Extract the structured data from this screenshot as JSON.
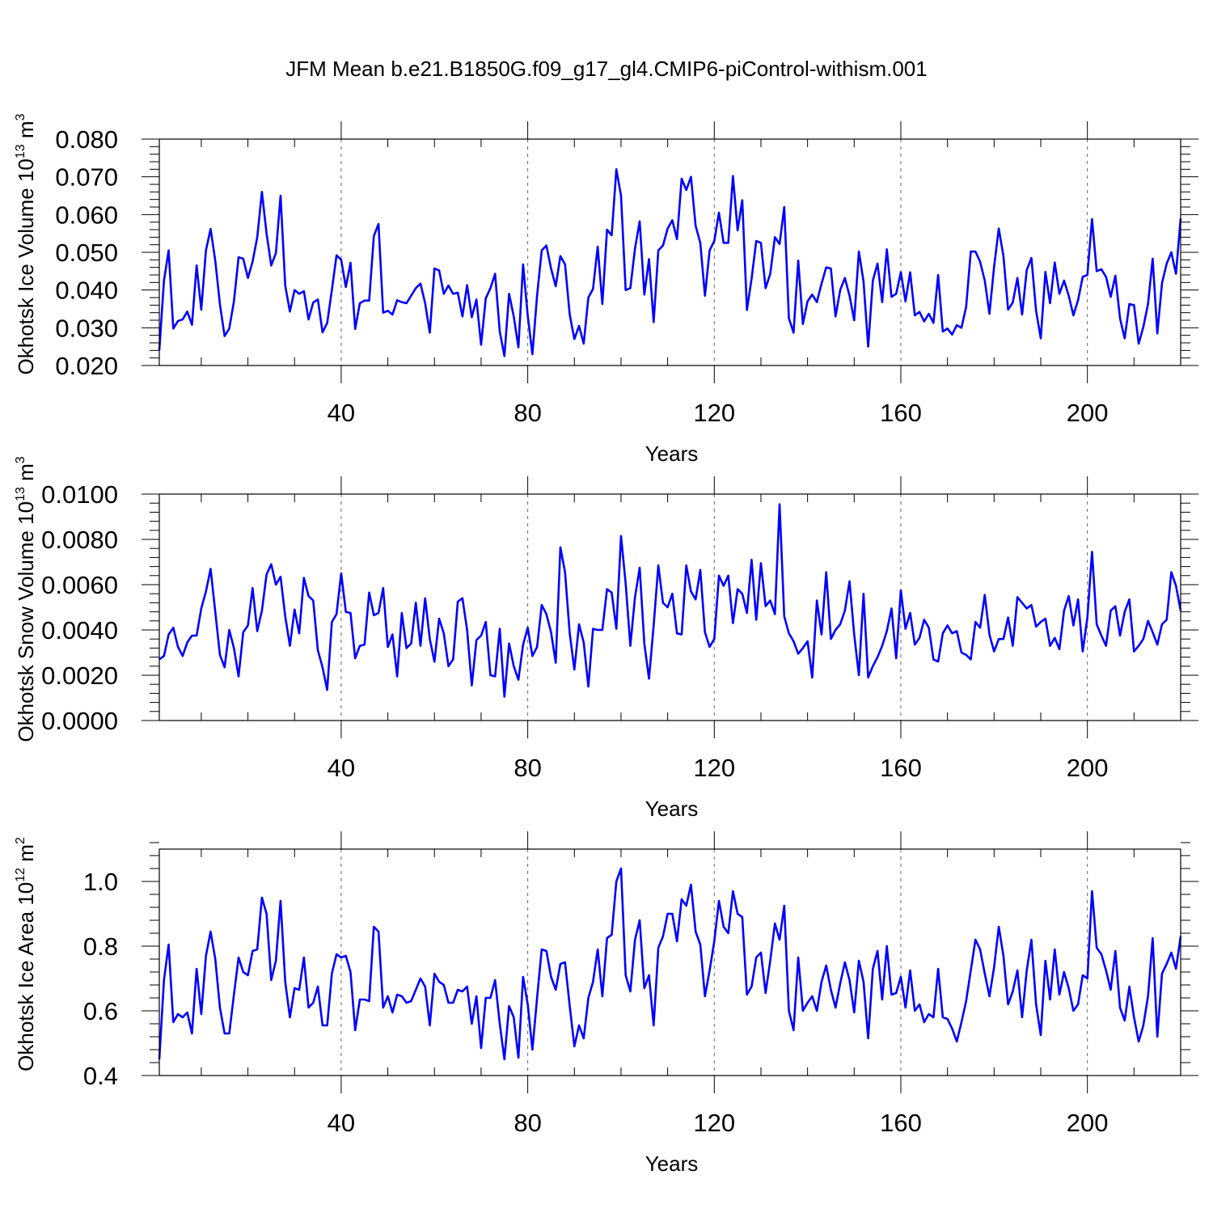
{
  "figure_title": "JFM Mean b.e21.B1850G.f09_g17_gl4.CMIP6-piControl-withism.001",
  "colors": {
    "line": "#0000ff",
    "axis": "#000000",
    "grid": "#666666"
  },
  "chart_data": [
    {
      "type": "line",
      "title": "",
      "xlabel": "Years",
      "ylabel": {
        "text": "Okhotsk Ice Volume 10",
        "exp": "13",
        "unit": " m",
        "unit_exp": "3"
      },
      "xlim": [
        1,
        220
      ],
      "ylim": [
        0.02,
        0.08
      ],
      "x_ticks": [
        40,
        80,
        120,
        160,
        200
      ],
      "y_ticks": [
        0.02,
        0.03,
        0.04,
        0.05,
        0.06,
        0.07,
        0.08
      ],
      "y_tick_labels": [
        "0.020",
        "0.030",
        "0.040",
        "0.050",
        "0.060",
        "0.070",
        "0.080"
      ],
      "grid": "vertical dashed at x ticks",
      "series": [
        {
          "name": "Okhotsk Ice Volume",
          "x_start": 1,
          "values": [
            0.024,
            0.0425,
            0.0505,
            0.0298,
            0.0318,
            0.0322,
            0.0343,
            0.0308,
            0.0465,
            0.0348,
            0.0505,
            0.0562,
            0.0478,
            0.0362,
            0.0278,
            0.0298,
            0.037,
            0.0487,
            0.0483,
            0.0432,
            0.0475,
            0.054,
            0.066,
            0.055,
            0.0465,
            0.0498,
            0.065,
            0.0412,
            0.0343,
            0.04,
            0.039,
            0.0397,
            0.0322,
            0.0367,
            0.0375,
            0.0288,
            0.0313,
            0.04,
            0.0492,
            0.048,
            0.0408,
            0.0472,
            0.0297,
            0.0365,
            0.0372,
            0.0372,
            0.0543,
            0.0575,
            0.034,
            0.0345,
            0.0335,
            0.0373,
            0.0368,
            0.0365,
            0.0385,
            0.0405,
            0.0417,
            0.0365,
            0.0287,
            0.0457,
            0.0452,
            0.039,
            0.0412,
            0.039,
            0.0393,
            0.033,
            0.0413,
            0.0328,
            0.0375,
            0.0255,
            0.0378,
            0.0405,
            0.0443,
            0.029,
            0.0225,
            0.039,
            0.033,
            0.0248,
            0.0468,
            0.0332,
            0.023,
            0.0385,
            0.0505,
            0.0518,
            0.0457,
            0.041,
            0.049,
            0.0468,
            0.0335,
            0.027,
            0.0305,
            0.0258,
            0.038,
            0.0403,
            0.0515,
            0.0363,
            0.056,
            0.0545,
            0.072,
            0.065,
            0.04,
            0.0405,
            0.051,
            0.0582,
            0.0388,
            0.0482,
            0.0315,
            0.0505,
            0.0518,
            0.0563,
            0.0585,
            0.0535,
            0.0695,
            0.0665,
            0.07,
            0.057,
            0.0525,
            0.0385,
            0.0505,
            0.053,
            0.0605,
            0.0525,
            0.0525,
            0.0702,
            0.0558,
            0.0638,
            0.0347,
            0.043,
            0.053,
            0.0525,
            0.0405,
            0.0443,
            0.054,
            0.0522,
            0.062,
            0.0325,
            0.0287,
            0.0478,
            0.031,
            0.037,
            0.0388,
            0.0368,
            0.0417,
            0.046,
            0.0457,
            0.033,
            0.04,
            0.0432,
            0.0385,
            0.032,
            0.0502,
            0.0423,
            0.025,
            0.0425,
            0.047,
            0.0368,
            0.0508,
            0.0382,
            0.039,
            0.0447,
            0.037,
            0.0447,
            0.0333,
            0.0342,
            0.0317,
            0.0337,
            0.0313,
            0.044,
            0.029,
            0.0298,
            0.0282,
            0.0307,
            0.03,
            0.0355,
            0.0502,
            0.0502,
            0.0475,
            0.0425,
            0.0337,
            0.0462,
            0.0563,
            0.049,
            0.0348,
            0.0367,
            0.0432,
            0.0335,
            0.0453,
            0.0485,
            0.0345,
            0.0272,
            0.0448,
            0.0365,
            0.0473,
            0.039,
            0.0425,
            0.0385,
            0.0333,
            0.0373,
            0.0435,
            0.044,
            0.0588,
            0.045,
            0.0455,
            0.0435,
            0.0382,
            0.0438,
            0.0325,
            0.0272,
            0.0363,
            0.036,
            0.0258,
            0.0302,
            0.0363,
            0.0483,
            0.0285,
            0.0418,
            0.047,
            0.05,
            0.0443,
            0.059
          ]
        }
      ]
    },
    {
      "type": "line",
      "title": "",
      "xlabel": "Years",
      "ylabel": {
        "text": "Okhotsk Snow Volume 10",
        "exp": "13",
        "unit": " m",
        "unit_exp": "3"
      },
      "xlim": [
        1,
        220
      ],
      "ylim": [
        0.0,
        0.01
      ],
      "x_ticks": [
        40,
        80,
        120,
        160,
        200
      ],
      "y_ticks": [
        0.0,
        0.002,
        0.004,
        0.006,
        0.008,
        0.01
      ],
      "y_tick_labels": [
        "0.0000",
        "0.0020",
        "0.0040",
        "0.0060",
        "0.0080",
        "0.0100"
      ],
      "grid": "vertical dashed at x ticks",
      "series": [
        {
          "name": "Okhotsk Snow Volume",
          "x_start": 1,
          "values": [
            0.0027,
            0.00285,
            0.0038,
            0.0041,
            0.00325,
            0.00285,
            0.00345,
            0.00375,
            0.00375,
            0.00495,
            0.0057,
            0.0067,
            0.0048,
            0.0029,
            0.00235,
            0.004,
            0.0032,
            0.00195,
            0.0039,
            0.0042,
            0.00585,
            0.00395,
            0.00485,
            0.00645,
            0.0069,
            0.006,
            0.00635,
            0.0046,
            0.0033,
            0.0049,
            0.00385,
            0.0063,
            0.0055,
            0.0053,
            0.0031,
            0.00235,
            0.00135,
            0.00435,
            0.0047,
            0.0065,
            0.0048,
            0.00475,
            0.00275,
            0.0033,
            0.00335,
            0.00565,
            0.00465,
            0.00475,
            0.00585,
            0.00325,
            0.0038,
            0.00195,
            0.00475,
            0.0032,
            0.0034,
            0.0052,
            0.0033,
            0.0054,
            0.0036,
            0.0026,
            0.0045,
            0.00385,
            0.0024,
            0.0027,
            0.00525,
            0.0054,
            0.004,
            0.00155,
            0.00355,
            0.00375,
            0.00435,
            0.002,
            0.00195,
            0.00405,
            0.00105,
            0.0034,
            0.0024,
            0.0018,
            0.00335,
            0.0041,
            0.00285,
            0.00325,
            0.0051,
            0.0047,
            0.0039,
            0.00255,
            0.00765,
            0.00655,
            0.00385,
            0.00225,
            0.00425,
            0.00345,
            0.0015,
            0.00405,
            0.004,
            0.004,
            0.0058,
            0.00565,
            0.00405,
            0.00815,
            0.00605,
            0.0033,
            0.00545,
            0.00675,
            0.0034,
            0.00185,
            0.0042,
            0.00685,
            0.0052,
            0.005,
            0.0056,
            0.00385,
            0.0038,
            0.00685,
            0.0057,
            0.00535,
            0.00665,
            0.0039,
            0.00325,
            0.0036,
            0.0064,
            0.00595,
            0.0064,
            0.0043,
            0.0058,
            0.0056,
            0.00475,
            0.0071,
            0.00445,
            0.00695,
            0.00505,
            0.0053,
            0.0047,
            0.00955,
            0.0046,
            0.00385,
            0.0035,
            0.00295,
            0.0032,
            0.0035,
            0.0019,
            0.0053,
            0.0038,
            0.00655,
            0.0036,
            0.004,
            0.00425,
            0.00485,
            0.00615,
            0.0038,
            0.002,
            0.0056,
            0.0019,
            0.0024,
            0.0028,
            0.0033,
            0.00395,
            0.00495,
            0.00275,
            0.00575,
            0.00405,
            0.00475,
            0.00335,
            0.00365,
            0.00445,
            0.0041,
            0.0027,
            0.0026,
            0.00385,
            0.0042,
            0.00385,
            0.00395,
            0.003,
            0.0029,
            0.0027,
            0.00435,
            0.0041,
            0.00555,
            0.0038,
            0.00305,
            0.0036,
            0.0036,
            0.00455,
            0.0033,
            0.00545,
            0.0052,
            0.00495,
            0.0051,
            0.00415,
            0.00435,
            0.0045,
            0.0033,
            0.00365,
            0.00315,
            0.00485,
            0.0055,
            0.0042,
            0.00535,
            0.00305,
            0.00455,
            0.00745,
            0.00425,
            0.00375,
            0.0033,
            0.00485,
            0.00505,
            0.00375,
            0.0048,
            0.00535,
            0.00305,
            0.0033,
            0.0036,
            0.0044,
            0.0039,
            0.00335,
            0.00425,
            0.00445,
            0.00655,
            0.00595,
            0.00485
          ]
        }
      ]
    },
    {
      "type": "line",
      "title": "",
      "xlabel": "Years",
      "ylabel": {
        "text": "Okhotsk Ice Area 10",
        "exp": "12",
        "unit": " m",
        "unit_exp": "2"
      },
      "xlim": [
        1,
        220
      ],
      "ylim": [
        0.4,
        1.1
      ],
      "x_ticks": [
        40,
        80,
        120,
        160,
        200
      ],
      "y_ticks": [
        0.4,
        0.6,
        0.8,
        1.0
      ],
      "y_tick_labels": [
        "0.4",
        "0.6",
        "0.8",
        "1.0"
      ],
      "grid": "vertical dashed at x ticks",
      "series": [
        {
          "name": "Okhotsk Ice Area",
          "x_start": 1,
          "values": [
            0.45,
            0.695,
            0.805,
            0.565,
            0.59,
            0.58,
            0.595,
            0.53,
            0.73,
            0.59,
            0.77,
            0.845,
            0.76,
            0.61,
            0.53,
            0.53,
            0.65,
            0.765,
            0.72,
            0.71,
            0.785,
            0.79,
            0.95,
            0.9,
            0.695,
            0.755,
            0.94,
            0.69,
            0.58,
            0.67,
            0.665,
            0.765,
            0.61,
            0.625,
            0.675,
            0.555,
            0.555,
            0.715,
            0.775,
            0.765,
            0.77,
            0.72,
            0.54,
            0.635,
            0.635,
            0.63,
            0.86,
            0.845,
            0.61,
            0.645,
            0.595,
            0.65,
            0.645,
            0.625,
            0.63,
            0.665,
            0.7,
            0.675,
            0.555,
            0.715,
            0.69,
            0.68,
            0.625,
            0.625,
            0.665,
            0.66,
            0.675,
            0.56,
            0.645,
            0.485,
            0.64,
            0.64,
            0.695,
            0.56,
            0.45,
            0.615,
            0.58,
            0.455,
            0.705,
            0.62,
            0.48,
            0.64,
            0.79,
            0.785,
            0.705,
            0.665,
            0.745,
            0.75,
            0.615,
            0.49,
            0.555,
            0.515,
            0.64,
            0.69,
            0.79,
            0.645,
            0.825,
            0.835,
            1.0,
            1.04,
            0.71,
            0.66,
            0.82,
            0.88,
            0.67,
            0.71,
            0.555,
            0.795,
            0.83,
            0.9,
            0.9,
            0.815,
            0.945,
            0.925,
            0.99,
            0.845,
            0.805,
            0.645,
            0.725,
            0.815,
            0.94,
            0.86,
            0.84,
            0.97,
            0.9,
            0.89,
            0.65,
            0.675,
            0.765,
            0.78,
            0.655,
            0.755,
            0.87,
            0.82,
            0.925,
            0.6,
            0.54,
            0.765,
            0.6,
            0.625,
            0.645,
            0.6,
            0.69,
            0.74,
            0.665,
            0.61,
            0.685,
            0.75,
            0.695,
            0.595,
            0.755,
            0.69,
            0.515,
            0.73,
            0.785,
            0.635,
            0.8,
            0.65,
            0.655,
            0.705,
            0.61,
            0.725,
            0.6,
            0.62,
            0.565,
            0.59,
            0.58,
            0.73,
            0.58,
            0.575,
            0.545,
            0.505,
            0.565,
            0.63,
            0.725,
            0.82,
            0.79,
            0.715,
            0.645,
            0.735,
            0.86,
            0.77,
            0.62,
            0.66,
            0.725,
            0.58,
            0.725,
            0.82,
            0.62,
            0.525,
            0.755,
            0.635,
            0.79,
            0.65,
            0.72,
            0.67,
            0.6,
            0.62,
            0.71,
            0.7,
            0.97,
            0.795,
            0.775,
            0.725,
            0.665,
            0.785,
            0.61,
            0.57,
            0.675,
            0.58,
            0.505,
            0.555,
            0.645,
            0.825,
            0.52,
            0.715,
            0.745,
            0.78,
            0.73,
            0.83
          ]
        }
      ]
    }
  ]
}
